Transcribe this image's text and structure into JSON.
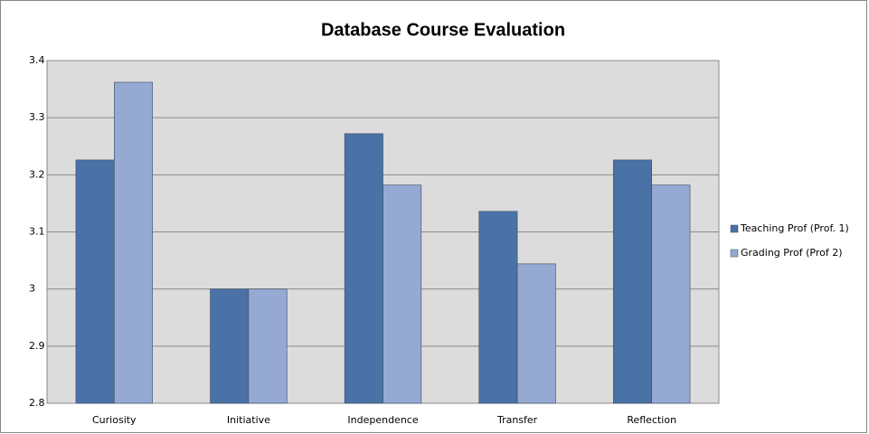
{
  "chart_data": {
    "type": "bar",
    "title": "Database Course Evaluation",
    "categories": [
      "Curiosity",
      "Initiative",
      "Independence",
      "Transfer",
      "Reflection"
    ],
    "series": [
      {
        "name": "Teaching Prof (Prof. 1)",
        "color": "#4a72a6",
        "values": [
          3.226,
          3.0,
          3.272,
          3.136,
          3.226
        ]
      },
      {
        "name": "Grading Prof (Prof 2)",
        "color": "#95a9d2",
        "values": [
          3.362,
          3.0,
          3.182,
          3.044,
          3.182
        ]
      }
    ],
    "ylim": [
      2.8,
      3.4
    ],
    "yticks": [
      2.8,
      2.9,
      3,
      3.1,
      3.2,
      3.3,
      3.4
    ],
    "grid": true,
    "legend": "right"
  }
}
